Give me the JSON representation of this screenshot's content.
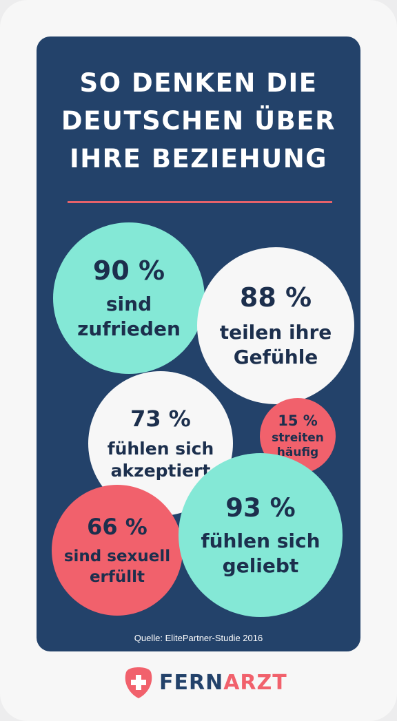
{
  "title": {
    "line1": "SO DENKEN DIE",
    "line2": "DEUTSCHEN ÜBER",
    "line3": "IHRE BEZIEHUNG"
  },
  "stats": [
    {
      "percent": "90 %",
      "label": "sind\nzufrieden",
      "color": "#84e8d6"
    },
    {
      "percent": "88 %",
      "label": "teilen ihre\nGefühle",
      "color": "#f7f7f7"
    },
    {
      "percent": "73 %",
      "label": "fühlen sich\nakzeptiert",
      "color": "#f7f7f7"
    },
    {
      "percent": "15 %",
      "label": "streiten\nhäufig",
      "color": "#f1616c"
    },
    {
      "percent": "66 %",
      "label": "sind sexuell\nerfüllt",
      "color": "#f1616c"
    },
    {
      "percent": "93 %",
      "label": "fühlen sich\ngeliebt",
      "color": "#84e8d6"
    }
  ],
  "source": "Quelle: ElitePartner-Studie 2016",
  "logo": {
    "part1": "FERN",
    "part2": "ARZT",
    "icon": "shield-cross-icon",
    "color_part1": "#23426a",
    "color_part2": "#f1616c"
  },
  "colors": {
    "background_card": "#23426a",
    "accent_rule": "#e6626a"
  }
}
